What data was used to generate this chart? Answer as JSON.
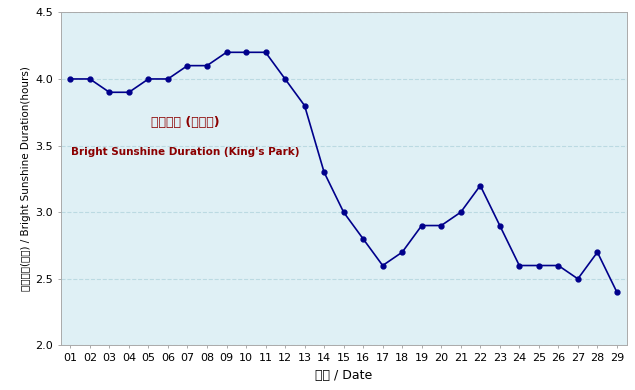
{
  "days": [
    "01",
    "02",
    "03",
    "04",
    "05",
    "06",
    "07",
    "08",
    "09",
    "10",
    "11",
    "12",
    "13",
    "14",
    "15",
    "16",
    "17",
    "18",
    "19",
    "20",
    "21",
    "22",
    "23",
    "24",
    "25",
    "26",
    "27",
    "28",
    "29"
  ],
  "values": [
    4.0,
    4.0,
    3.9,
    3.9,
    4.0,
    4.0,
    4.1,
    4.1,
    4.2,
    4.2,
    4.2,
    4.0,
    3.8,
    3.3,
    3.0,
    2.8,
    2.6,
    2.7,
    2.9,
    2.9,
    3.0,
    3.2,
    2.9,
    2.6,
    2.6,
    2.6,
    2.5,
    2.7,
    2.4
  ],
  "line_color": "#00008B",
  "marker": "o",
  "marker_size": 3.5,
  "bg_color": "#DFF0F5",
  "fig_bg_color": "#FFFFFF",
  "grid_color": "#B8D8E0",
  "ylabel_chinese": "平均日照(小時) / Bright Sunshine Duration(hours)",
  "xlabel": "日期 / Date",
  "legend_chinese": "平均日照 (京士柳)",
  "legend_english": "Bright Sunshine Duration (King's Park)",
  "legend_color": "#8B0000",
  "ylim": [
    2.0,
    4.5
  ],
  "yticks": [
    2.0,
    2.5,
    3.0,
    3.5,
    4.0,
    4.5
  ],
  "tick_fontsize": 8,
  "axis_fontsize": 9,
  "ylabel_fontsize": 7.5
}
